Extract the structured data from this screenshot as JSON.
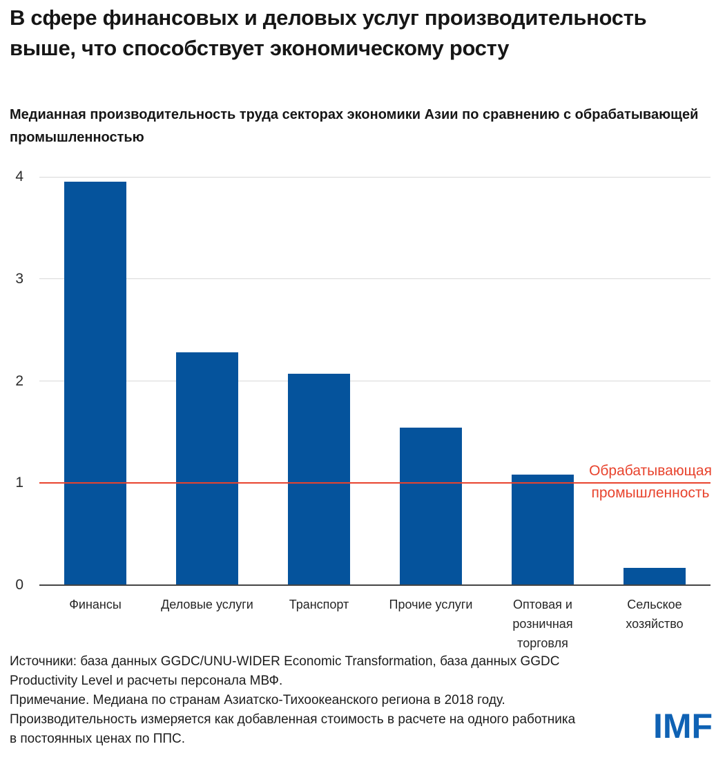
{
  "title": "В сфере финансовых и деловых услуг производительность выше, что способствует экономическому росту",
  "subtitle": "Медианная производительность труда секторах экономики Азии по сравнению с обрабатывающей промышленностью",
  "chart_data": {
    "type": "bar",
    "categories": [
      "Финансы",
      "Деловые услуги",
      "Транспорт",
      "Прочие услуги",
      "Оптовая и розничная торговля",
      "Сельское хозяйство"
    ],
    "category_display": [
      "Финансы",
      "Деловые услуги",
      "Транспорт",
      "Прочие услуги",
      "Оптовая и\nрозничная\nторговля",
      "Сельское\nхозяйство"
    ],
    "values": [
      3.95,
      2.28,
      2.07,
      1.54,
      1.08,
      0.17
    ],
    "title": "Медианная производительность труда секторах экономики Азии по сравнению с обрабатывающей промышленностью",
    "xlabel": "",
    "ylabel": "",
    "ylim": [
      0,
      4
    ],
    "y_ticks": [
      0,
      1,
      2,
      3,
      4
    ],
    "grid": true,
    "legend_position": "none",
    "reference_line": {
      "value": 1,
      "label": "Обрабатывающая промышленность",
      "label_display": "Обрабатывающая\nпромышленность"
    }
  },
  "footnotes": {
    "lines": [
      "Источники: база данных GGDC/UNU-WIDER Economic Transformation, база данных GGDC",
      "Productivity Level и расчеты персонала МВФ.",
      "Примечание. Медиана по странам Азиатско-Тихоокеанского региона в 2018 году.",
      "Производительность измеряется как добавленная стоимость в расчете на одного работника",
      "в постоянных ценах по ППС."
    ]
  },
  "logo_text": "IMF",
  "colors": {
    "bar": "#05539c",
    "reference": "#e8432d",
    "gridline": "#d9d9d9",
    "axis": "#444444",
    "logo": "#0f62b4"
  }
}
